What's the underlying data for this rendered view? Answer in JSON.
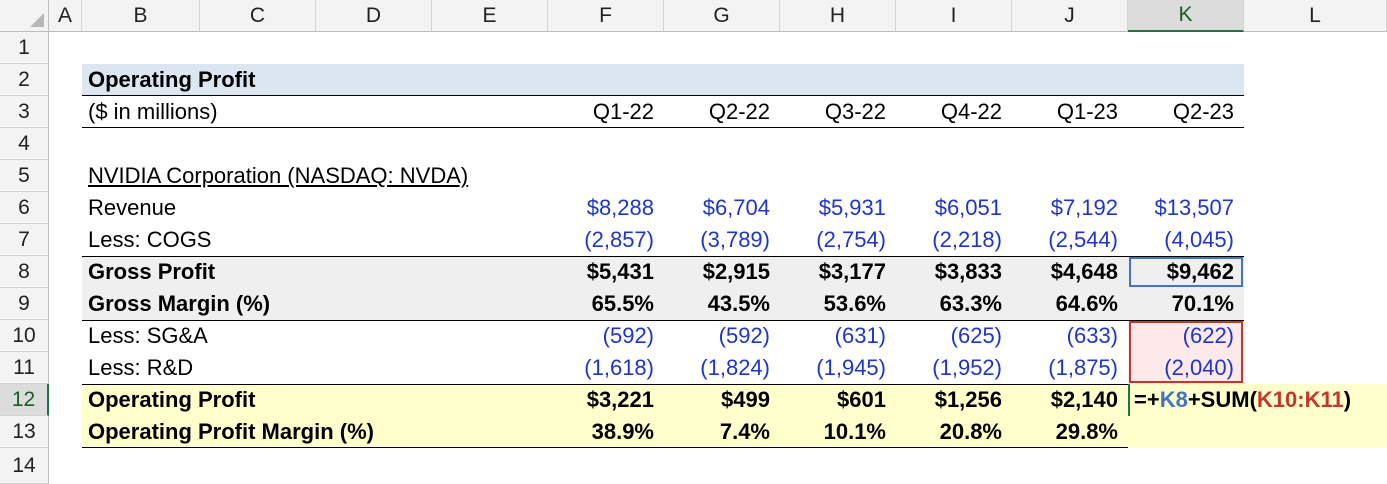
{
  "columns": [
    "A",
    "B",
    "C",
    "D",
    "E",
    "F",
    "G",
    "H",
    "I",
    "J",
    "K",
    "L"
  ],
  "rows": [
    "1",
    "2",
    "3",
    "4",
    "5",
    "6",
    "7",
    "8",
    "9",
    "10",
    "11",
    "12",
    "13",
    "14"
  ],
  "title": "Operating Profit",
  "units": "($ in millions)",
  "periods": [
    "Q1-22",
    "Q2-22",
    "Q3-22",
    "Q4-22",
    "Q1-23",
    "Q2-23"
  ],
  "company": "NVIDIA Corporation (NASDAQ: NVDA)",
  "lines": {
    "revenue": {
      "label": "Revenue",
      "values": [
        "$8,288",
        "$6,704",
        "$5,931",
        "$6,051",
        "$7,192",
        "$13,507"
      ]
    },
    "cogs": {
      "label": "Less: COGS",
      "values": [
        "(2,857)",
        "(3,789)",
        "(2,754)",
        "(2,218)",
        "(2,544)",
        "(4,045)"
      ]
    },
    "gross_profit": {
      "label": "Gross Profit",
      "values": [
        "$5,431",
        "$2,915",
        "$3,177",
        "$3,833",
        "$4,648",
        "$9,462"
      ]
    },
    "gross_margin": {
      "label": "Gross Margin (%)",
      "values": [
        "65.5%",
        "43.5%",
        "53.6%",
        "63.3%",
        "64.6%",
        "70.1%"
      ]
    },
    "sga": {
      "label": "Less: SG&A",
      "values": [
        "(592)",
        "(592)",
        "(631)",
        "(625)",
        "(633)",
        "(622)"
      ]
    },
    "rnd": {
      "label": "Less: R&D",
      "values": [
        "(1,618)",
        "(1,824)",
        "(1,945)",
        "(1,952)",
        "(1,875)",
        "(2,040)"
      ]
    },
    "operating_profit": {
      "label": "Operating Profit",
      "values": [
        "$3,221",
        "$499",
        "$601",
        "$1,256",
        "$2,140"
      ]
    },
    "operating_margin": {
      "label": "Operating Profit Margin (%)",
      "values": [
        "38.9%",
        "7.4%",
        "10.1%",
        "20.8%",
        "29.8%"
      ]
    }
  },
  "formula": {
    "prefix": "=+",
    "ref1": "K8",
    "mid": "+SUM(",
    "ref2": "K10:K11",
    "suffix": ")"
  },
  "colors": {
    "header_fill": "#dce6f1",
    "grey_fill": "#efefef",
    "yellow_fill": "#ffffcc",
    "pink_fill": "#fde9e9",
    "ref1_color": "#4472c4",
    "ref2_color": "#c0392b",
    "input_blue": "#1f35c9"
  }
}
